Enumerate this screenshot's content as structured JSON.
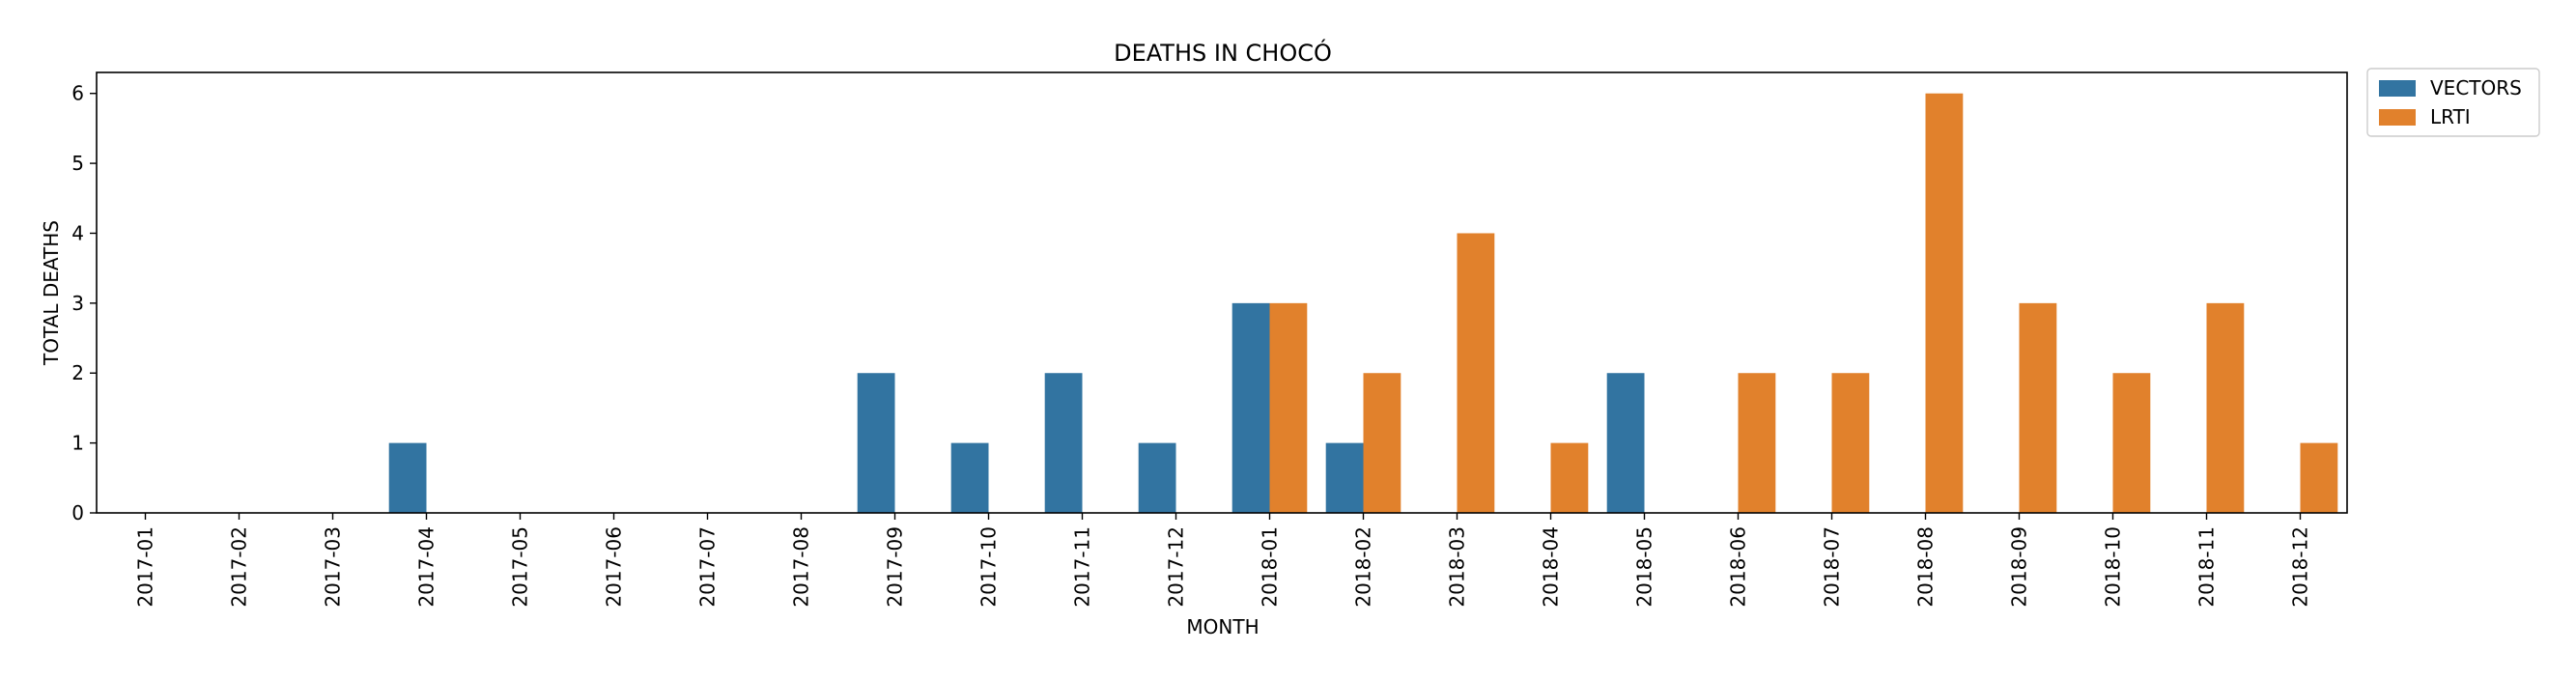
{
  "chart_data": {
    "type": "bar",
    "title": "DEATHS IN CHOCÓ",
    "xlabel": "MONTH",
    "ylabel": "TOTAL DEATHS",
    "ylim": [
      0,
      6.3
    ],
    "yticks": [
      0,
      1,
      2,
      3,
      4,
      5,
      6
    ],
    "grid": false,
    "legend_position": "outside-top-right",
    "categories": [
      "2017-01",
      "2017-02",
      "2017-03",
      "2017-04",
      "2017-05",
      "2017-06",
      "2017-07",
      "2017-08",
      "2017-09",
      "2017-10",
      "2017-11",
      "2017-12",
      "2018-01",
      "2018-02",
      "2018-03",
      "2018-04",
      "2018-05",
      "2018-06",
      "2018-07",
      "2018-08",
      "2018-09",
      "2018-10",
      "2018-11",
      "2018-12"
    ],
    "series": [
      {
        "name": "VECTORS",
        "color": "#3274a1",
        "values": [
          0,
          0,
          0,
          1,
          0,
          0,
          0,
          0,
          2,
          1,
          2,
          1,
          3,
          1,
          0,
          0,
          2,
          0,
          0,
          0,
          0,
          0,
          0,
          0
        ]
      },
      {
        "name": "LRTI",
        "color": "#e1812c",
        "values": [
          0,
          0,
          0,
          0,
          0,
          0,
          0,
          0,
          0,
          0,
          0,
          0,
          3,
          2,
          4,
          1,
          0,
          2,
          2,
          6,
          3,
          2,
          3,
          1
        ]
      }
    ]
  }
}
